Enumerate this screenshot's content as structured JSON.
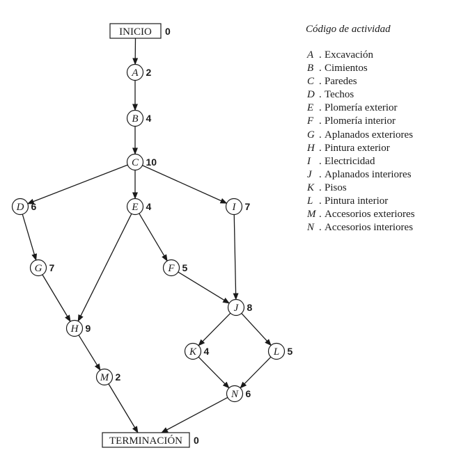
{
  "legend": {
    "title": "Código de actividad",
    "items": [
      {
        "code": "A",
        "name": "Excavación"
      },
      {
        "code": "B",
        "name": "Cimientos"
      },
      {
        "code": "C",
        "name": "Paredes"
      },
      {
        "code": "D",
        "name": "Techos"
      },
      {
        "code": "E",
        "name": "Plomería exterior"
      },
      {
        "code": "F",
        "name": "Plomería interior"
      },
      {
        "code": "G",
        "name": "Aplanados exteriores"
      },
      {
        "code": "H",
        "name": "Pintura exterior"
      },
      {
        "code": "I",
        "name": "Electricidad"
      },
      {
        "code": "J",
        "name": "Aplanados interiores"
      },
      {
        "code": "K",
        "name": "Pisos"
      },
      {
        "code": "L",
        "name": "Pintura interior"
      },
      {
        "code": "M",
        "name": "Accesorios exteriores"
      },
      {
        "code": "N",
        "name": "Accesorios interiores"
      }
    ]
  },
  "network": {
    "start": {
      "label": "INICIO",
      "duration": "0"
    },
    "end": {
      "label": "TERMINACIÓN",
      "duration": "0"
    },
    "nodes": [
      {
        "id": "A",
        "duration": "2"
      },
      {
        "id": "B",
        "duration": "4"
      },
      {
        "id": "C",
        "duration": "10"
      },
      {
        "id": "D",
        "duration": "6"
      },
      {
        "id": "E",
        "duration": "4"
      },
      {
        "id": "I",
        "duration": "7"
      },
      {
        "id": "G",
        "duration": "7"
      },
      {
        "id": "F",
        "duration": "5"
      },
      {
        "id": "J",
        "duration": "8"
      },
      {
        "id": "H",
        "duration": "9"
      },
      {
        "id": "K",
        "duration": "4"
      },
      {
        "id": "L",
        "duration": "5"
      },
      {
        "id": "M",
        "duration": "2"
      },
      {
        "id": "N",
        "duration": "6"
      }
    ],
    "edges": [
      [
        "INICIO",
        "A"
      ],
      [
        "A",
        "B"
      ],
      [
        "B",
        "C"
      ],
      [
        "C",
        "D"
      ],
      [
        "C",
        "E"
      ],
      [
        "C",
        "I"
      ],
      [
        "D",
        "G"
      ],
      [
        "G",
        "H"
      ],
      [
        "E",
        "H"
      ],
      [
        "E",
        "F"
      ],
      [
        "F",
        "J"
      ],
      [
        "I",
        "J"
      ],
      [
        "J",
        "K"
      ],
      [
        "J",
        "L"
      ],
      [
        "H",
        "M"
      ],
      [
        "K",
        "N"
      ],
      [
        "L",
        "N"
      ],
      [
        "M",
        "TERMINACION"
      ],
      [
        "N",
        "TERMINACION"
      ]
    ]
  }
}
